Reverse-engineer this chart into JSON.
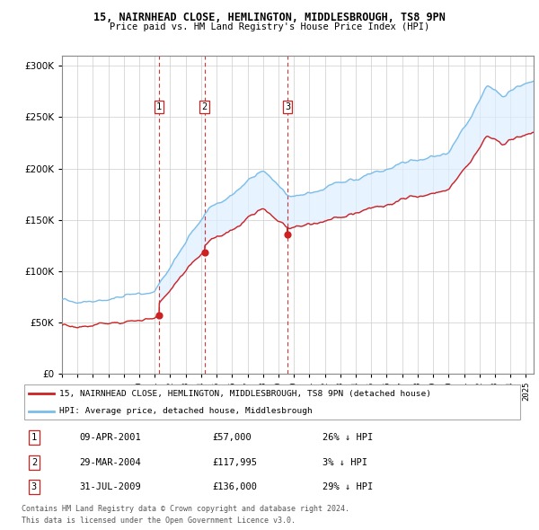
{
  "title_line1": "15, NAIRNHEAD CLOSE, HEMLINGTON, MIDDLESBROUGH, TS8 9PN",
  "title_line2": "Price paid vs. HM Land Registry's House Price Index (HPI)",
  "hpi_legend": "HPI: Average price, detached house, Middlesbrough",
  "prop_legend": "15, NAIRNHEAD CLOSE, HEMLINGTON, MIDDLESBROUGH, TS8 9PN (detached house)",
  "sale1_date": "09-APR-2001",
  "sale1_price": 57000,
  "sale1_hpi_diff": "26% ↓ HPI",
  "sale2_date": "29-MAR-2004",
  "sale2_price": 117995,
  "sale2_hpi_diff": "3% ↓ HPI",
  "sale3_date": "31-JUL-2009",
  "sale3_price": 136000,
  "sale3_hpi_diff": "29% ↓ HPI",
  "hpi_color": "#7bbde8",
  "prop_color": "#cc2222",
  "vline_color": "#cc2222",
  "fill_color": "#ddeeff",
  "footer1": "Contains HM Land Registry data © Crown copyright and database right 2024.",
  "footer2": "This data is licensed under the Open Government Licence v3.0.",
  "ylim_max": 310000,
  "xlim_start": 1995.0,
  "xlim_end": 2025.5,
  "sale1_year": 2001.27,
  "sale2_year": 2004.21,
  "sale3_year": 2009.58
}
